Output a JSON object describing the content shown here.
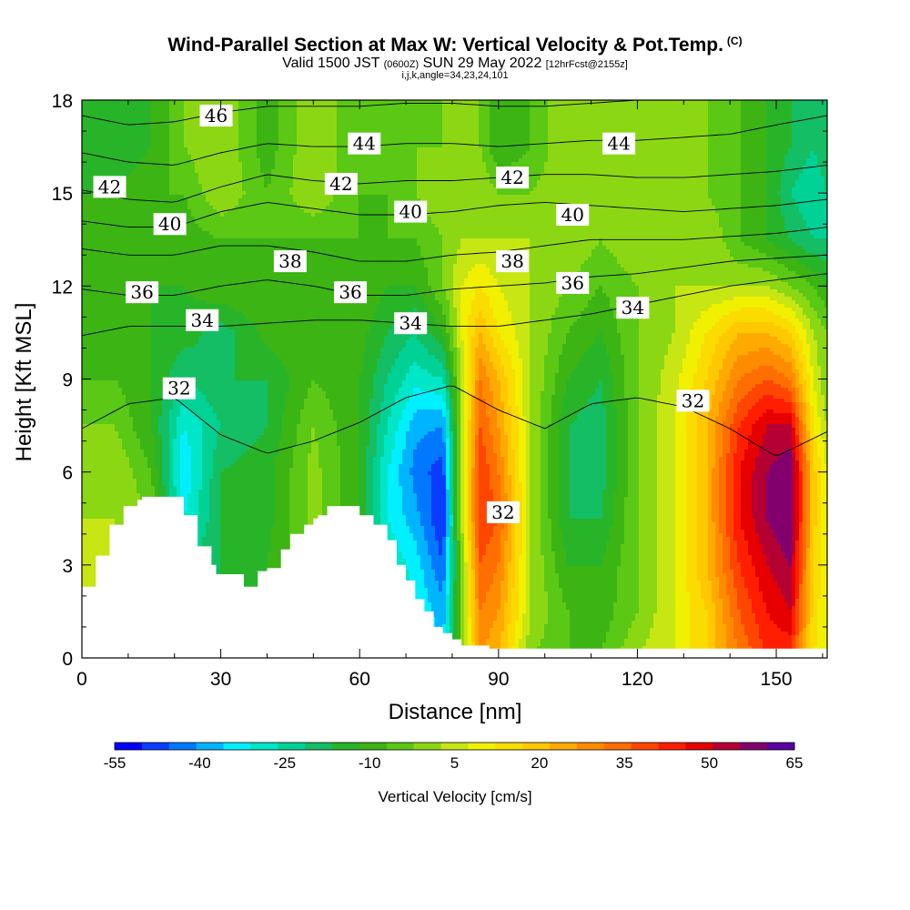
{
  "header": {
    "title": "Wind-Parallel Section at Max W: Vertical Velocity & Pot.Temp.",
    "copyright": "(C)",
    "valid_a": "Valid 1500 JST ",
    "valid_b": "(0600Z)",
    "valid_c": " SUN 29 May 2022 ",
    "valid_d": "[12hrFcst@2155z]",
    "params": "i,j,k,angle=34,23,24,101"
  },
  "chart_data": {
    "type": "heatmap",
    "title": "Wind-Parallel Section at Max W: Vertical Velocity & Pot.Temp.",
    "xlabel": "Distance [nm]",
    "ylabel": "Height [Kft MSL]",
    "xlim": [
      0,
      161
    ],
    "ylim": [
      0,
      18
    ],
    "x_ticks": [
      0,
      30,
      60,
      90,
      120,
      150
    ],
    "y_ticks": [
      0,
      3,
      6,
      9,
      12,
      15,
      18
    ],
    "colorbar": {
      "label": "Vertical Velocity [cm/s]",
      "tick_labels": [
        "-55",
        "-40",
        "-25",
        "-10",
        "5",
        "20",
        "35",
        "50",
        "65"
      ],
      "levels": [
        -55,
        -50,
        -45,
        -40,
        -35,
        -30,
        -25,
        -20,
        -15,
        -10,
        -5,
        0,
        5,
        10,
        15,
        20,
        25,
        30,
        35,
        40,
        45,
        50,
        55,
        60,
        65
      ],
      "colors": [
        "#0000ff",
        "#0a3cff",
        "#0078ff",
        "#00b4ff",
        "#00f0ff",
        "#00e6c8",
        "#00d296",
        "#14be64",
        "#28b428",
        "#3cb414",
        "#5ac814",
        "#8cd714",
        "#c8e614",
        "#f0f000",
        "#fadc00",
        "#ffc800",
        "#ffaa00",
        "#ff8c00",
        "#ff6e00",
        "#ff4600",
        "#ff1e00",
        "#e60000",
        "#b40032",
        "#82006e",
        "#5a00a0"
      ]
    },
    "vertical_velocity_cm_s": {
      "x_nm": [
        0,
        7,
        15,
        22,
        30,
        40,
        50,
        60,
        66,
        72,
        78,
        82,
        86,
        90,
        97,
        105,
        112,
        120,
        128,
        135,
        142,
        148,
        153,
        158,
        161
      ],
      "height_kft": [
        0,
        1.5,
        3,
        4.5,
        6,
        7.5,
        9,
        10.5,
        12,
        13.5,
        15,
        16.5,
        18
      ],
      "values": [
        [
          8,
          6,
          4,
          -5,
          -12,
          -8,
          0,
          -6,
          -25,
          -30,
          -35,
          0,
          30,
          25,
          0,
          -5,
          -5,
          5,
          10,
          20,
          35,
          45,
          45,
          15,
          10
        ],
        [
          8,
          6,
          4,
          -5,
          -15,
          -10,
          0,
          -6,
          -25,
          -30,
          -38,
          0,
          35,
          30,
          5,
          -5,
          -8,
          0,
          10,
          20,
          40,
          50,
          55,
          18,
          10
        ],
        [
          8,
          6,
          2,
          -20,
          -15,
          -10,
          0,
          -8,
          -25,
          -32,
          -45,
          0,
          40,
          35,
          5,
          -10,
          -10,
          0,
          10,
          25,
          45,
          55,
          60,
          20,
          10
        ],
        [
          5,
          5,
          0,
          -30,
          -15,
          -12,
          2,
          -10,
          -30,
          -38,
          -50,
          5,
          45,
          40,
          5,
          -15,
          -15,
          0,
          10,
          25,
          50,
          60,
          65,
          22,
          10
        ],
        [
          5,
          5,
          -5,
          -35,
          -15,
          -12,
          2,
          -10,
          -30,
          -42,
          -48,
          5,
          45,
          35,
          5,
          -15,
          -18,
          0,
          10,
          25,
          50,
          60,
          65,
          22,
          10
        ],
        [
          0,
          0,
          -10,
          -30,
          -20,
          -15,
          0,
          -10,
          -25,
          -38,
          -40,
          5,
          40,
          30,
          5,
          -15,
          -18,
          0,
          10,
          25,
          45,
          55,
          55,
          15,
          5
        ],
        [
          -5,
          -5,
          -10,
          -20,
          -15,
          -15,
          -5,
          -10,
          -20,
          -28,
          -25,
          5,
          35,
          25,
          5,
          -10,
          -15,
          0,
          8,
          20,
          35,
          40,
          35,
          10,
          0
        ],
        [
          -5,
          -5,
          -10,
          -12,
          -18,
          -8,
          -5,
          -8,
          -15,
          -20,
          -10,
          10,
          25,
          15,
          5,
          -5,
          -10,
          0,
          5,
          15,
          25,
          25,
          20,
          5,
          0
        ],
        [
          -5,
          -8,
          -10,
          -10,
          -5,
          -5,
          -5,
          -5,
          -10,
          -10,
          0,
          10,
          15,
          10,
          5,
          0,
          -5,
          0,
          5,
          5,
          5,
          5,
          0,
          -5,
          -10
        ],
        [
          -10,
          -5,
          -10,
          -8,
          -5,
          -5,
          -5,
          -5,
          -5,
          -5,
          0,
          5,
          5,
          5,
          5,
          5,
          0,
          5,
          5,
          5,
          -5,
          -10,
          -15,
          -20,
          -20
        ],
        [
          -10,
          -10,
          -5,
          -5,
          5,
          -5,
          5,
          -5,
          -5,
          0,
          5,
          5,
          5,
          0,
          0,
          5,
          5,
          5,
          5,
          0,
          -5,
          -10,
          -20,
          -25,
          -20
        ],
        [
          -10,
          -15,
          -10,
          0,
          5,
          -8,
          5,
          -5,
          0,
          0,
          0,
          5,
          0,
          -10,
          -5,
          5,
          5,
          5,
          5,
          0,
          -5,
          -10,
          -15,
          -20,
          -15
        ],
        [
          -10,
          -15,
          -10,
          0,
          5,
          -8,
          5,
          -5,
          0,
          0,
          0,
          5,
          0,
          -10,
          -5,
          5,
          5,
          5,
          5,
          0,
          -5,
          -10,
          -15,
          -20,
          -15
        ]
      ]
    },
    "terrain_kft": {
      "x_nm": [
        0,
        3,
        3,
        6,
        6,
        9,
        9,
        12,
        12,
        13,
        13,
        22,
        22,
        25,
        25,
        28,
        28,
        29,
        29,
        31,
        31,
        35,
        35,
        38,
        38,
        40,
        40,
        43,
        43,
        45,
        45,
        48,
        48,
        50,
        50,
        51,
        51,
        53,
        53,
        60,
        60,
        63,
        63,
        66,
        66,
        68,
        68,
        70,
        70,
        72,
        72,
        74,
        74,
        76,
        76,
        78,
        78,
        80,
        80,
        82,
        82,
        88,
        88,
        161,
        161,
        0
      ],
      "height_kft": [
        2.3,
        2.3,
        3.3,
        3.3,
        4.3,
        4.3,
        4.9,
        4.9,
        5.1,
        5.1,
        5.2,
        5.2,
        4.6,
        4.6,
        3.6,
        3.6,
        3.0,
        3.0,
        2.7,
        2.7,
        2.7,
        2.7,
        2.3,
        2.3,
        2.8,
        2.8,
        2.9,
        2.9,
        3.5,
        3.5,
        4.0,
        4.0,
        4.3,
        4.3,
        4.5,
        4.5,
        4.6,
        4.6,
        4.9,
        4.9,
        4.6,
        4.6,
        4.3,
        4.3,
        3.8,
        3.8,
        3.0,
        3.0,
        2.5,
        2.5,
        1.9,
        1.9,
        1.5,
        1.5,
        1.0,
        1.0,
        0.8,
        0.8,
        0.6,
        0.6,
        0.4,
        0.4,
        0.3,
        0.3,
        0,
        0
      ]
    },
    "potential_temperature_C": {
      "x_nm": [
        0,
        10,
        20,
        30,
        40,
        50,
        60,
        70,
        80,
        90,
        100,
        110,
        120,
        130,
        140,
        150,
        161
      ],
      "isentropes": [
        {
          "value": 32,
          "heights_kft": [
            7.4,
            8.2,
            8.4,
            7.2,
            6.6,
            7.0,
            7.6,
            8.4,
            8.8,
            8.0,
            7.4,
            8.2,
            8.4,
            8.1,
            7.4,
            6.5,
            7.3
          ]
        },
        {
          "value": 34,
          "heights_kft": [
            10.4,
            10.7,
            10.7,
            10.7,
            10.8,
            10.9,
            10.9,
            10.8,
            10.7,
            10.7,
            10.9,
            11.1,
            11.4,
            11.7,
            12.0,
            12.2,
            12.4
          ]
        },
        {
          "value": 36,
          "heights_kft": [
            11.9,
            11.7,
            11.7,
            12.0,
            12.2,
            12.0,
            11.7,
            11.7,
            11.9,
            12.0,
            12.1,
            12.3,
            12.4,
            12.6,
            12.8,
            12.9,
            13.0
          ]
        },
        {
          "value": 38,
          "heights_kft": [
            13.2,
            13.0,
            13.0,
            13.3,
            13.3,
            13.1,
            12.8,
            12.8,
            13.0,
            13.1,
            13.3,
            13.5,
            13.5,
            13.5,
            13.6,
            13.7,
            13.9
          ]
        },
        {
          "value": 40,
          "heights_kft": [
            14.1,
            13.9,
            13.9,
            14.4,
            14.7,
            14.5,
            14.3,
            14.3,
            14.4,
            14.6,
            14.7,
            14.6,
            14.5,
            14.4,
            14.5,
            14.6,
            14.8
          ]
        },
        {
          "value": 42,
          "heights_kft": [
            15.1,
            14.8,
            14.7,
            15.2,
            15.6,
            15.4,
            15.3,
            15.4,
            15.4,
            15.5,
            15.6,
            15.6,
            15.5,
            15.5,
            15.6,
            15.7,
            15.9
          ]
        },
        {
          "value": 44,
          "heights_kft": [
            16.3,
            16.0,
            15.9,
            16.3,
            16.6,
            16.5,
            16.5,
            16.6,
            16.6,
            16.5,
            16.6,
            16.7,
            16.7,
            16.8,
            16.9,
            17.2,
            17.5
          ]
        },
        {
          "value": 46,
          "heights_kft": [
            17.5,
            17.2,
            17.3,
            17.6,
            17.8,
            17.8,
            17.8,
            17.9,
            17.9,
            17.8,
            17.8,
            17.9,
            18.0,
            18.0,
            18.0,
            18.0,
            18.0
          ]
        }
      ],
      "contour_labels": [
        {
          "text": "46",
          "x": 29,
          "y": 17.5
        },
        {
          "text": "44",
          "x": 61,
          "y": 16.6
        },
        {
          "text": "44",
          "x": 116,
          "y": 16.6
        },
        {
          "text": "42",
          "x": 6,
          "y": 15.2
        },
        {
          "text": "42",
          "x": 56,
          "y": 15.3
        },
        {
          "text": "42",
          "x": 93,
          "y": 15.5
        },
        {
          "text": "40",
          "x": 19,
          "y": 14.0
        },
        {
          "text": "40",
          "x": 71,
          "y": 14.4
        },
        {
          "text": "40",
          "x": 106,
          "y": 14.3
        },
        {
          "text": "38",
          "x": 45,
          "y": 12.8
        },
        {
          "text": "38",
          "x": 93,
          "y": 12.8
        },
        {
          "text": "36",
          "x": 13,
          "y": 11.8
        },
        {
          "text": "36",
          "x": 58,
          "y": 11.8
        },
        {
          "text": "36",
          "x": 106,
          "y": 12.1
        },
        {
          "text": "34",
          "x": 26,
          "y": 10.9
        },
        {
          "text": "34",
          "x": 71,
          "y": 10.8
        },
        {
          "text": "34",
          "x": 119,
          "y": 11.3
        },
        {
          "text": "32",
          "x": 21,
          "y": 8.7
        },
        {
          "text": "32",
          "x": 91,
          "y": 4.7
        },
        {
          "text": "32",
          "x": 132,
          "y": 8.3
        }
      ]
    }
  }
}
